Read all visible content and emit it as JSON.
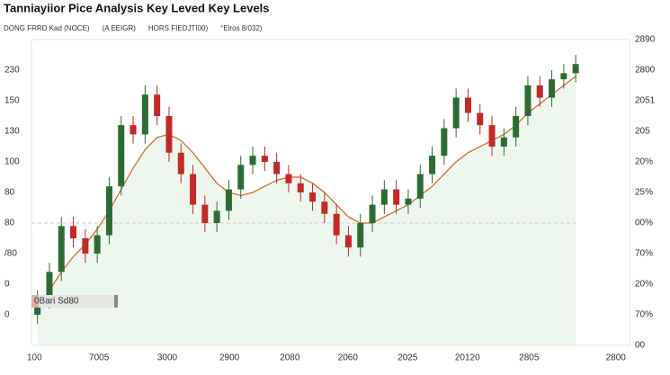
{
  "chart_data": {
    "type": "candlestick",
    "title": "Tanniayiior Pice Analysis Key Leved Key Levels",
    "legend": [
      {
        "text": "DONG FRRD  Kad  (NOCE)",
        "color": "#333333"
      },
      {
        "text": "(A EEIGR)",
        "color": "#c62828"
      },
      {
        "text": "HORS FIEDJTI00)",
        "color": "#2e7d32"
      },
      {
        "text": "°Elros 8/032)",
        "color": "#c62828"
      }
    ],
    "up_color": "#2e6b34",
    "down_color": "#c62828",
    "ma_color": "#d4622a",
    "area_color": "#e8f5e9",
    "badge": "0Bari Sd80",
    "reference_line": 4,
    "xlim": [
      0,
      100
    ],
    "xticks": [
      {
        "value": 0.5,
        "label": "100"
      },
      {
        "value": 11.3,
        "label": "7005"
      },
      {
        "value": 22.7,
        "label": "3000"
      },
      {
        "value": 33.1,
        "label": "2900"
      },
      {
        "value": 43.2,
        "label": "2080"
      },
      {
        "value": 52.9,
        "label": "2060"
      },
      {
        "value": 62.9,
        "label": "2025"
      },
      {
        "value": 72.9,
        "label": "20120"
      },
      {
        "value": 83.2,
        "label": "2805"
      },
      {
        "value": 97.7,
        "label": "2800"
      }
    ],
    "ylim": [
      0,
      10
    ],
    "yticks": [
      {
        "value": 9,
        "label": "230"
      },
      {
        "value": 8,
        "label": "150"
      },
      {
        "value": 7,
        "label": "130"
      },
      {
        "value": 6,
        "label": "100"
      },
      {
        "value": 5,
        "label": "80"
      },
      {
        "value": 4,
        "label": "80"
      },
      {
        "value": 3,
        "label": "/80"
      },
      {
        "value": 2,
        "label": "0"
      },
      {
        "value": 1,
        "label": "0"
      }
    ],
    "y2lim": [
      0,
      10
    ],
    "y2ticks": [
      {
        "value": 10,
        "label": "2890"
      },
      {
        "value": 9,
        "label": "2800"
      },
      {
        "value": 8,
        "label": "2051"
      },
      {
        "value": 7,
        "label": "205"
      },
      {
        "value": 6,
        "label": "20%"
      },
      {
        "value": 5,
        "label": "25%"
      },
      {
        "value": 4,
        "label": "00%"
      },
      {
        "value": 3,
        "label": "70%"
      },
      {
        "value": 2,
        "label": "20%"
      },
      {
        "value": 1,
        "label": "70%"
      },
      {
        "value": 0,
        "label": "00"
      }
    ],
    "x": [
      1,
      3,
      5,
      7,
      9,
      11,
      13,
      15,
      17,
      19,
      21,
      23,
      25,
      27,
      29,
      31,
      33,
      35,
      37,
      39,
      41,
      43,
      45,
      47,
      49,
      51,
      53,
      55,
      57,
      59,
      61,
      63,
      65,
      67,
      69,
      71,
      73,
      75,
      77,
      79,
      81,
      83,
      85,
      87,
      89,
      91
    ],
    "open": [
      1.0,
      1.5,
      2.4,
      3.9,
      3.5,
      3.0,
      3.6,
      5.2,
      7.2,
      6.9,
      8.2,
      7.5,
      6.3,
      5.6,
      4.6,
      4.0,
      4.4,
      5.1,
      5.9,
      6.2,
      6.0,
      5.6,
      5.3,
      5.0,
      4.7,
      4.3,
      3.6,
      3.2,
      4.0,
      4.6,
      5.1,
      4.6,
      4.8,
      5.6,
      6.2,
      7.1,
      8.1,
      7.6,
      7.2,
      6.5,
      6.8,
      7.5,
      8.5,
      8.1,
      8.7,
      8.9
    ],
    "high": [
      1.8,
      2.7,
      4.2,
      4.2,
      3.8,
      3.9,
      5.5,
      7.5,
      7.5,
      8.5,
      8.5,
      7.8,
      6.6,
      5.9,
      4.9,
      4.7,
      5.4,
      6.2,
      6.5,
      6.5,
      6.3,
      5.9,
      5.6,
      5.3,
      5.0,
      4.6,
      3.9,
      4.3,
      4.9,
      5.4,
      5.4,
      5.1,
      5.9,
      6.5,
      7.4,
      8.4,
      8.4,
      7.9,
      7.5,
      7.1,
      7.8,
      8.8,
      8.8,
      9.0,
      9.2,
      9.5
    ],
    "low": [
      0.7,
      1.2,
      2.1,
      3.2,
      2.7,
      2.7,
      3.3,
      4.9,
      6.6,
      6.6,
      7.2,
      6.0,
      5.3,
      4.3,
      3.7,
      3.7,
      4.1,
      4.8,
      5.6,
      5.7,
      5.3,
      5.0,
      4.7,
      4.4,
      4.0,
      3.3,
      2.9,
      2.9,
      3.7,
      4.3,
      4.3,
      4.3,
      4.5,
      5.3,
      5.9,
      6.8,
      7.3,
      6.9,
      6.2,
      6.2,
      6.5,
      7.2,
      7.8,
      7.8,
      8.4,
      8.6
    ],
    "close": [
      1.5,
      2.4,
      3.9,
      3.5,
      3.0,
      3.6,
      5.2,
      7.2,
      6.9,
      8.2,
      7.5,
      6.3,
      5.6,
      4.6,
      4.0,
      4.4,
      5.1,
      5.9,
      6.2,
      6.0,
      5.6,
      5.3,
      5.0,
      4.7,
      4.3,
      3.6,
      3.2,
      4.0,
      4.6,
      5.1,
      4.6,
      4.8,
      5.6,
      6.2,
      7.1,
      8.1,
      7.6,
      7.2,
      6.5,
      6.8,
      7.5,
      8.5,
      8.1,
      8.7,
      8.9,
      9.2
    ],
    "ma_values": [
      1.2,
      1.8,
      2.4,
      2.9,
      3.3,
      3.8,
      4.4,
      5.1,
      5.8,
      6.4,
      6.8,
      6.9,
      6.7,
      6.3,
      5.8,
      5.3,
      5.0,
      4.9,
      5.0,
      5.2,
      5.4,
      5.5,
      5.5,
      5.3,
      5.0,
      4.6,
      4.2,
      4.0,
      4.0,
      4.2,
      4.4,
      4.6,
      4.9,
      5.2,
      5.6,
      6.0,
      6.3,
      6.5,
      6.7,
      6.9,
      7.2,
      7.6,
      7.9,
      8.2,
      8.5,
      8.8
    ]
  }
}
